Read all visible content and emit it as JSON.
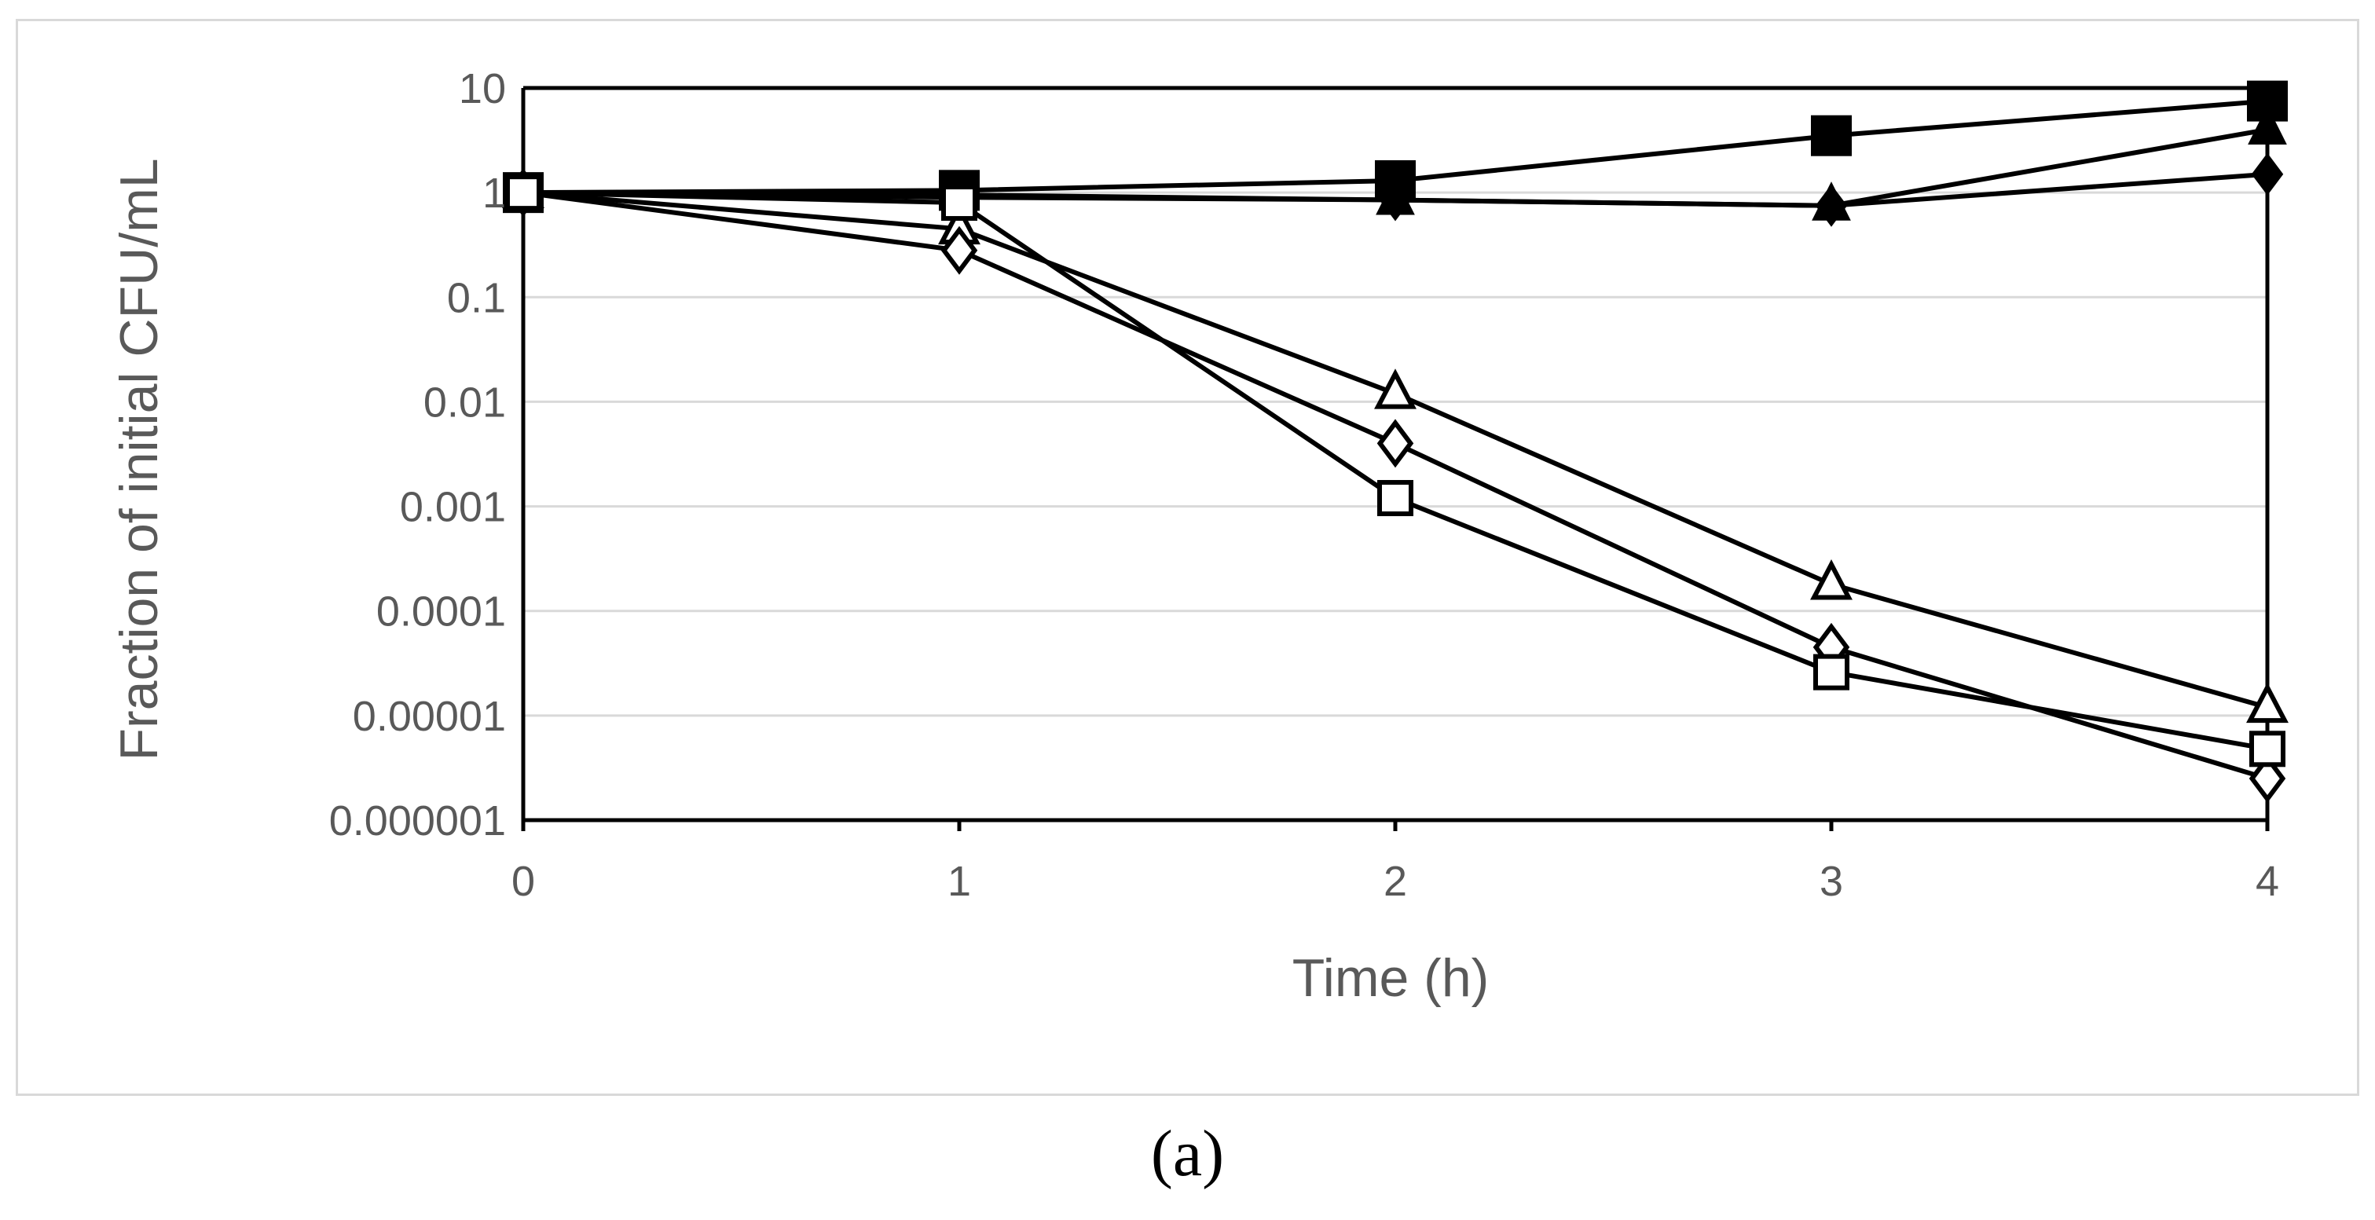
{
  "caption": "(a)",
  "chart_data": {
    "type": "line",
    "xlabel": "Time (h)",
    "ylabel": "Fraction of initial CFU/mL",
    "yscale": "log",
    "x": [
      0,
      1,
      2,
      3,
      4
    ],
    "xticks": [
      "0",
      "1",
      "2",
      "3",
      "4"
    ],
    "xlim": [
      0,
      4
    ],
    "yticks": [
      "10",
      "1",
      "0.1",
      "0.01",
      "0.001",
      "0.0001",
      "0.00001",
      "0.000001"
    ],
    "ylim": [
      1e-06,
      10
    ],
    "grid": "horizontal",
    "legend": "none",
    "series": [
      {
        "marker": "filled-square",
        "values": [
          1,
          1.05,
          1.3,
          3.5,
          7.5
        ]
      },
      {
        "marker": "filled-triangle",
        "values": [
          1,
          0.95,
          0.85,
          0.75,
          4.0
        ]
      },
      {
        "marker": "filled-diamond",
        "values": [
          1,
          0.9,
          0.85,
          0.75,
          1.5
        ]
      },
      {
        "marker": "open-triangle",
        "values": [
          1,
          0.45,
          0.012,
          0.00018,
          1.2e-05
        ]
      },
      {
        "marker": "open-diamond",
        "values": [
          1,
          0.28,
          0.004,
          4.5e-05,
          2.5e-06
        ]
      },
      {
        "marker": "open-square",
        "values": [
          1,
          0.8,
          0.0012,
          2.6e-05,
          4.8e-06
        ]
      }
    ],
    "colors": {
      "line": "#000000",
      "grid": "#d9d9d9",
      "text": "#595959"
    }
  }
}
